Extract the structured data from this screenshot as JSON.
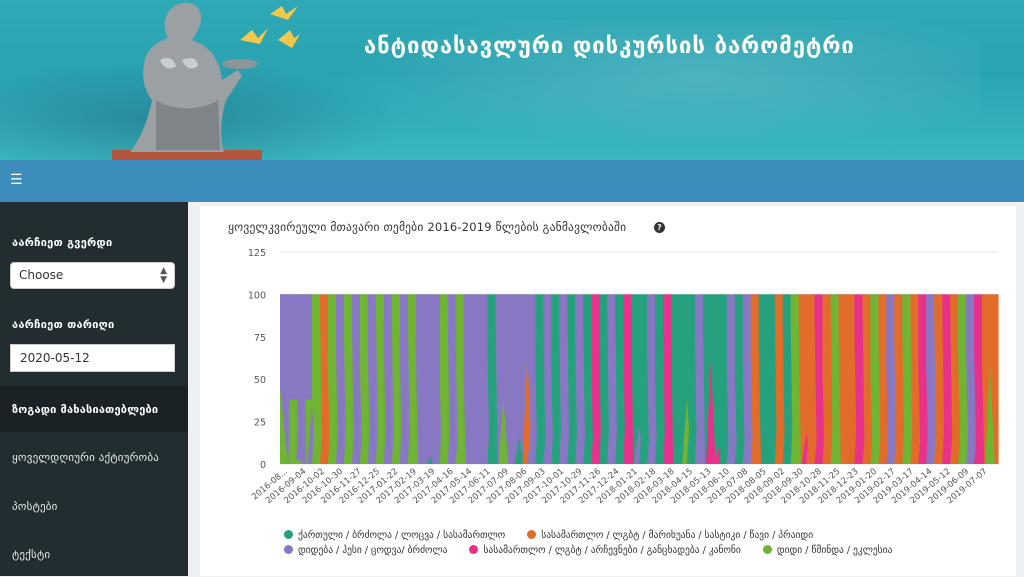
{
  "header": {
    "site_title": "ანტიდასავლური დისკურსის ბარომეტრი"
  },
  "navbar": {
    "menu_icon": "hamburger-icon"
  },
  "sidebar": {
    "page_label": "აარჩიეთ გვერდი",
    "page_select_value": "Choose",
    "date_label": "აარჩიეთ თარიღი",
    "date_value": "2020-05-12",
    "menu": [
      {
        "label": "ზოგადი მახასიათებლები",
        "active": true
      },
      {
        "label": "ყოველდღიური აქტიურობა",
        "active": false
      },
      {
        "label": "პოსტები",
        "active": false
      },
      {
        "label": "ტექსტი",
        "active": false
      }
    ]
  },
  "chart_data": {
    "type": "area",
    "title": "ყოველკვირეული მთავარი თემები 2016-2019 წლების განმავლობაში",
    "ylim": [
      0,
      125
    ],
    "yticks": [
      0,
      25,
      50,
      75,
      100,
      125
    ],
    "x_tick_labels": [
      "2016-08...",
      "2016-09-04",
      "2016-10-02",
      "2016-10-30",
      "2016-11-27",
      "2016-12-25",
      "2017-01-22",
      "2017-02-19",
      "2017-03-19",
      "2017-04-16",
      "2017-05-14",
      "2017-06-11",
      "2017-07-09",
      "2017-08-06",
      "2017-09-03",
      "2017-10-01",
      "2017-10-29",
      "2017-11-26",
      "2017-12-24",
      "2018-01-21",
      "2018-02-18",
      "2018-03-18",
      "2018-04-15",
      "2018-05-13",
      "2018-06-10",
      "2018-07-08",
      "2018-08-05",
      "2018-09-02",
      "2018-09-30",
      "2018-10-28",
      "2018-11-25",
      "2018-12-23",
      "2019-01-20",
      "2019-02-17",
      "2019-03-17",
      "2019-04-14",
      "2019-05-12",
      "2019-06-09",
      "2019-07-07"
    ],
    "stacked_percent": true,
    "series": [
      {
        "name": "ქართული / ბრძოლა / ლოცვა / სასამართლო",
        "color": "#26a17e"
      },
      {
        "name": "სასამართლო / ლგბტ / მარიხუანა / სასტიკი / წავი / პრაიდი",
        "color": "#e26c2a"
      },
      {
        "name": "დიდება / ჰესი / ცოდვა/ ბრძოლა",
        "color": "#8878c3"
      },
      {
        "name": "სასამართლო / ლგბტ / არჩევნები / განცხადება / კანონი",
        "color": "#e7318b"
      },
      {
        "name": "დიდი / წმინდა / ეკლესია",
        "color": "#6fb433"
      }
    ],
    "dominant_sequence_weekly": [
      "purple",
      "green",
      "purple",
      "green",
      "green",
      "orange",
      "green",
      "purple",
      "green",
      "purple",
      "green",
      "purple",
      "green",
      "purple",
      "green",
      "purple",
      "green",
      "purple",
      "purple",
      "purple",
      "green",
      "purple",
      "green",
      "purple",
      "purple",
      "purple",
      "teal",
      "purple",
      "purple",
      "purple",
      "purple",
      "purple",
      "teal",
      "purple",
      "teal",
      "purple",
      "teal",
      "purple",
      "teal",
      "pink",
      "teal",
      "purple",
      "teal",
      "pink",
      "teal",
      "teal",
      "purple",
      "teal",
      "pink",
      "teal",
      "teal",
      "teal",
      "purple",
      "teal",
      "teal",
      "teal",
      "purple",
      "teal",
      "purple",
      "orange",
      "teal",
      "teal",
      "orange",
      "teal",
      "green",
      "orange",
      "orange",
      "pink",
      "orange",
      "green",
      "orange",
      "orange",
      "pink",
      "orange",
      "green",
      "orange",
      "purple",
      "orange",
      "green",
      "orange",
      "pink",
      "purple",
      "orange",
      "pink",
      "orange",
      "green",
      "purple",
      "pink",
      "orange",
      "orange"
    ]
  }
}
